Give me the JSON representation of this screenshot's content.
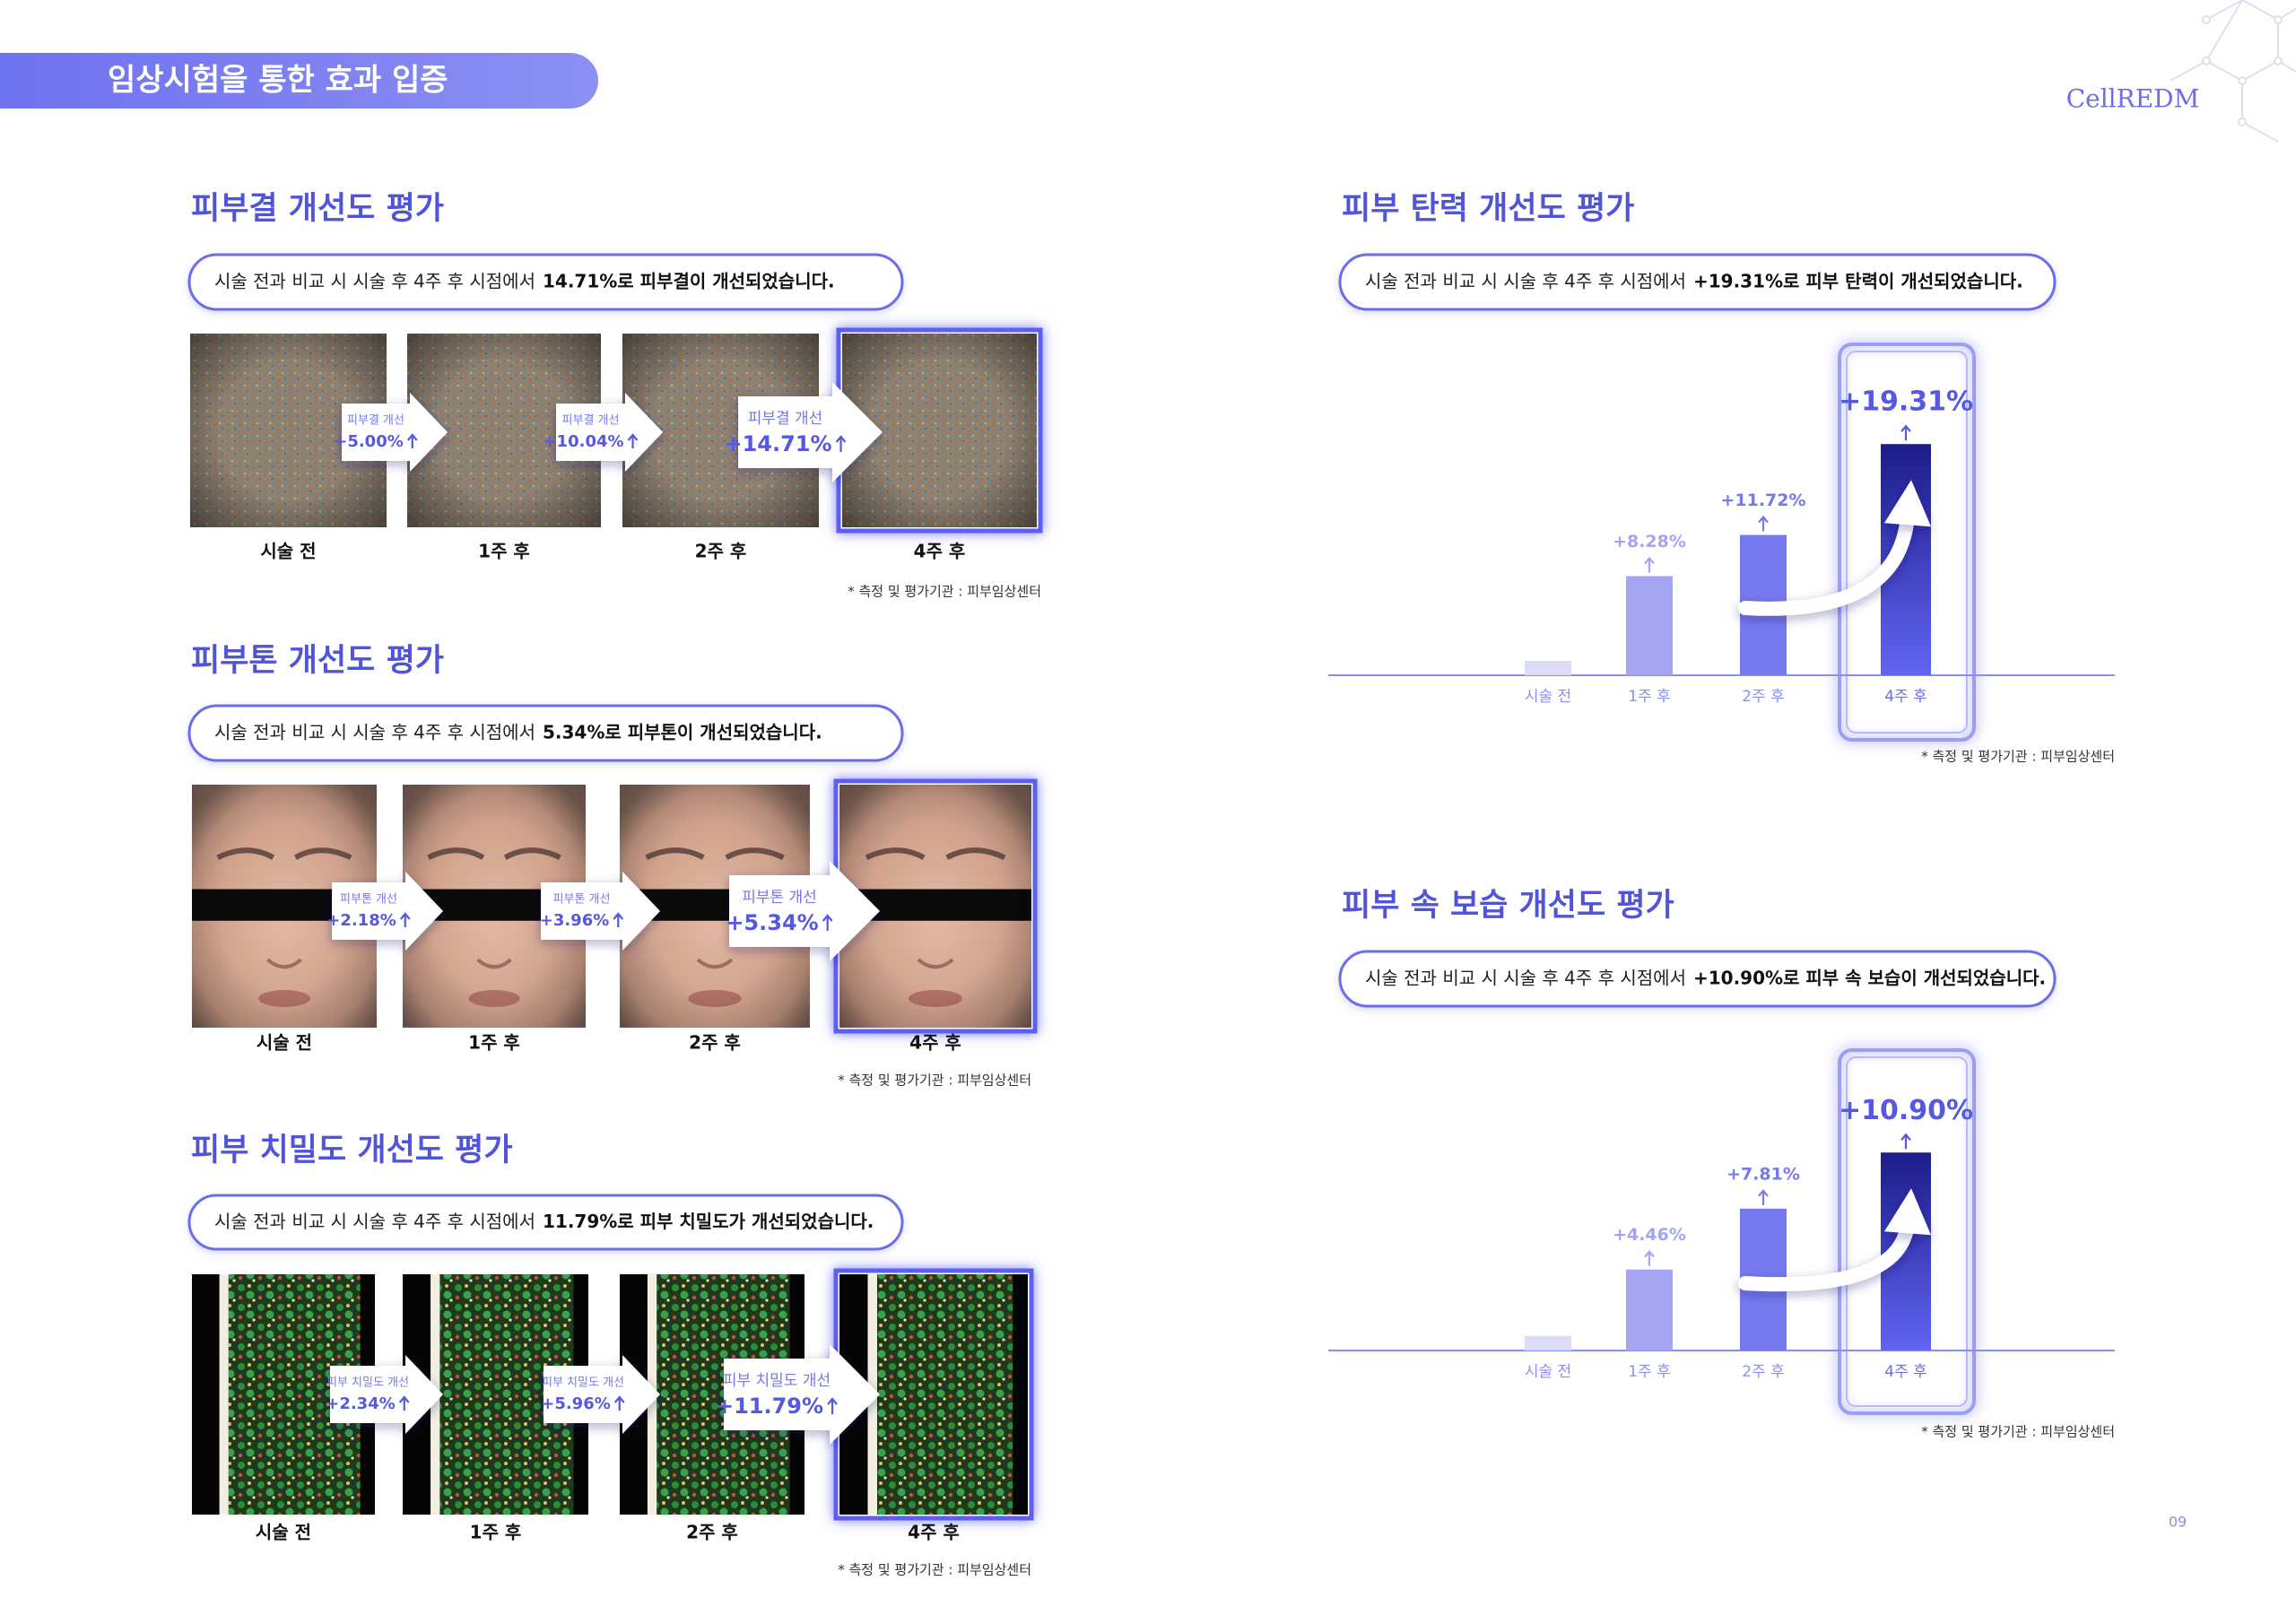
{
  "header": {
    "title": "임상시험을 통한 효과 입증",
    "logo": "CellREDM",
    "page_number": "09"
  },
  "photo_sections": [
    {
      "title": "피부결 개선도 평가",
      "description": {
        "text": "시술 전과 비교 시 시술 후 4주 후 시점에서",
        "highlight": "14.71%로 피부결이 개선되었습니다."
      },
      "stages": [
        "시술 전",
        "1주 후",
        "2주 후",
        "4주 후"
      ],
      "improvements": [
        {
          "label": "피부결 개선",
          "value": "+5.00%"
        },
        {
          "label": "피부결 개선",
          "value": "+10.04%"
        },
        {
          "label": "피부결 개선",
          "value": "+14.71%"
        }
      ],
      "note": "* 측정 및 평가기관 : 피부임상센터"
    },
    {
      "title": "피부톤 개선도 평가",
      "description": {
        "text": "시술 전과 비교 시 시술 후 4주 후 시점에서",
        "highlight": "5.34%로 피부톤이 개선되었습니다."
      },
      "stages": [
        "시술 전",
        "1주 후",
        "2주 후",
        "4주 후"
      ],
      "improvements": [
        {
          "label": "피부톤 개선",
          "value": "+2.18%"
        },
        {
          "label": "피부톤 개선",
          "value": "+3.96%"
        },
        {
          "label": "피부톤 개선",
          "value": "+5.34%"
        }
      ],
      "note": "* 측정 및 평가기관 : 피부임상센터"
    },
    {
      "title": "피부 치밀도 개선도 평가",
      "description": {
        "text": "시술 전과 비교 시 시술 후 4주 후 시점에서",
        "highlight": "11.79%로 피부 치밀도가 개선되었습니다."
      },
      "stages": [
        "시술 전",
        "1주 후",
        "2주 후",
        "4주 후"
      ],
      "improvements": [
        {
          "label": "피부 치밀도 개선",
          "value": "+2.34%"
        },
        {
          "label": "피부 치밀도 개선",
          "value": "+5.96%"
        },
        {
          "label": "피부 치밀도 개선",
          "value": "+11.79%"
        }
      ],
      "note": "* 측정 및 평가기관 : 피부임상센터"
    }
  ],
  "chart_data": [
    {
      "type": "bar",
      "title": "피부 탄력 개선도 평가",
      "description": {
        "text": "시술 전과 비교 시 시술 후 4주 후 시점에서",
        "highlight": "+19.31%로 피부 탄력이 개선되었습니다."
      },
      "categories": [
        "시술 전",
        "1주 후",
        "2주 후",
        "4주 후"
      ],
      "values": [
        1.2,
        8.28,
        11.72,
        19.31
      ],
      "value_labels": [
        null,
        "+8.28%",
        "+11.72%",
        "+19.31%"
      ],
      "colors": [
        "#dcdcf6",
        "#a3a5f2",
        "#7779ee",
        "#1c1c8a"
      ],
      "ylim": [
        0,
        20
      ],
      "note": "* 측정 및 평가기관 : 피부임상센터"
    },
    {
      "type": "bar",
      "title": "피부 속 보습 개선도 평가",
      "description": {
        "text": "시술 전과 비교 시 시술 후 4주 후 시점에서",
        "highlight": "+10.90%로 피부 속 보습이 개선되었습니다."
      },
      "categories": [
        "시술 전",
        "1주 후",
        "2주 후",
        "4주 후"
      ],
      "values": [
        0.8,
        4.46,
        7.81,
        10.9
      ],
      "value_labels": [
        null,
        "+4.46%",
        "+7.81%",
        "+10.90%"
      ],
      "colors": [
        "#dcdcf6",
        "#a3a5f2",
        "#7779ee",
        "#1c1c8a"
      ],
      "ylim": [
        0,
        12
      ],
      "note": "* 측정 및 평가기관 : 피부임상센터"
    }
  ]
}
